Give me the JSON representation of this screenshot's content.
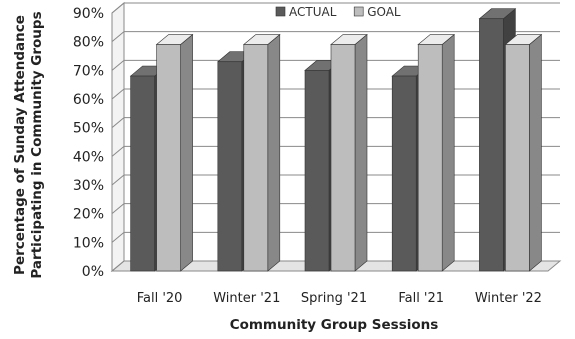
{
  "chart_data": {
    "type": "bar",
    "title": "",
    "xlabel": "Community Group Sessions",
    "ylabel_line1": "Percentage of Sunday Attendance",
    "ylabel_line2": "Participating in Community Groups",
    "categories": [
      "Fall '20",
      "Winter '21",
      "Spring '21",
      "Fall '21",
      "Winter '22"
    ],
    "series": [
      {
        "name": "ACTUAL",
        "values": [
          68,
          73,
          70,
          68,
          88
        ],
        "color": "#5a5a5a"
      },
      {
        "name": "GOAL",
        "values": [
          79,
          79,
          79,
          79,
          79
        ],
        "color": "#bdbdbd"
      }
    ],
    "yticks": [
      "0%",
      "10%",
      "20%",
      "30%",
      "40%",
      "50%",
      "60%",
      "70%",
      "80%",
      "90%"
    ],
    "ylim": [
      0,
      90
    ],
    "grid": true,
    "legend": "top"
  }
}
